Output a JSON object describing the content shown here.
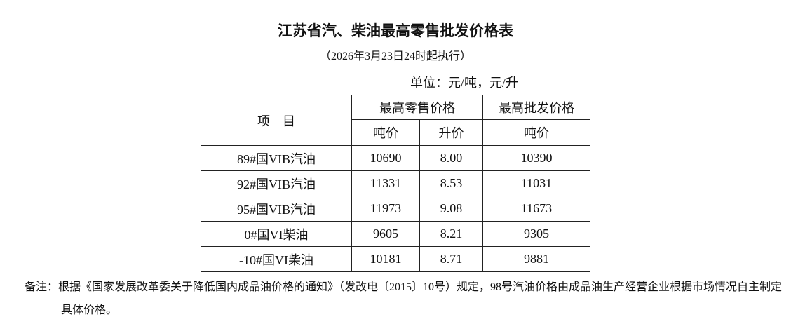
{
  "title": "江苏省汽、柴油最高零售批发价格表",
  "subtitle": "（2026年3月23日24时起执行）",
  "unit": "单位：元/吨，元/升",
  "table": {
    "header": {
      "item": "项　目",
      "retail": "最高零售价格",
      "wholesale": "最高批发价格",
      "retail_ton": "吨价",
      "retail_liter": "升价",
      "wholesale_ton": "吨价"
    },
    "rows": [
      [
        "89#国VIB汽油",
        "10690",
        "8.00",
        "10390"
      ],
      [
        "92#国VIB汽油",
        "11331",
        "8.53",
        "11031"
      ],
      [
        "95#国VIB汽油",
        "11973",
        "9.08",
        "11673"
      ],
      [
        "0#国VI柴油",
        "9605",
        "8.21",
        "9305"
      ],
      [
        "-10#国VI柴油",
        "10181",
        "8.71",
        "9881"
      ]
    ]
  },
  "note": "备注：根据《国家发展改革委关于降低国内成品油价格的通知》（发改电〔2015〕10号）规定，98号汽油价格由成品油生产经营企业根据市场情况自主制定具体价格。"
}
